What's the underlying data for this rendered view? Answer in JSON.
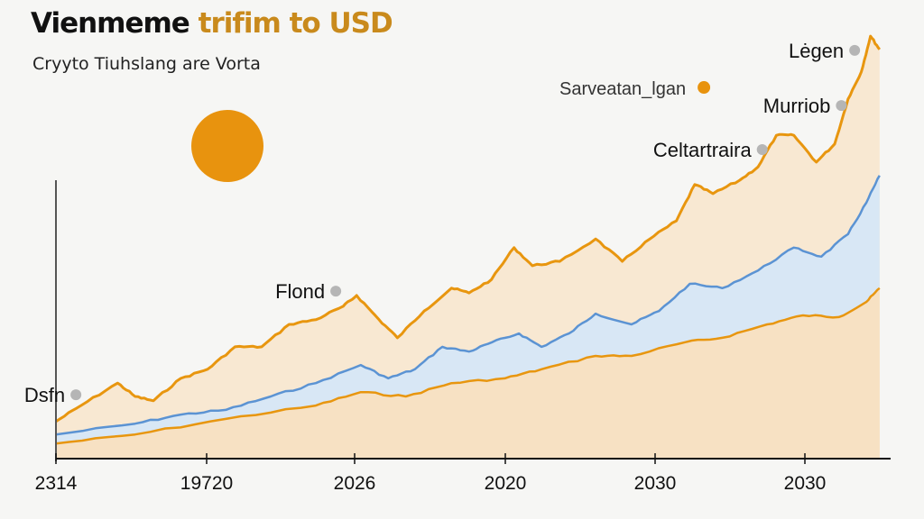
{
  "chart_data": {
    "type": "area",
    "title": "Vienmeme trifim to USD",
    "title_parts": [
      "Vienmeme",
      "trifim to USD"
    ],
    "subtitle": "Cryyto Tiuhslang are Vorta",
    "xlabel": "",
    "ylabel": "",
    "x_tick_labels": [
      "2314",
      "19720",
      "2026",
      "2020",
      "2030",
      "2030"
    ],
    "xlim": [
      0,
      100
    ],
    "ylim": [
      0,
      100
    ],
    "grid": false,
    "colors": {
      "orange": "#e8960f",
      "blue": "#5b93d3",
      "orange_fill": "#f8e8d2",
      "blue_fill": "#d8e7f5",
      "lower_fill": "#f7e1c3",
      "accent_circle": "#e8930e",
      "title_accent": "#c98a1c"
    },
    "series": [
      {
        "color": "orange",
        "points": [
          [
            0,
            8.6
          ],
          [
            3,
            12.3
          ],
          [
            7.4,
            17.5
          ],
          [
            9.5,
            14.4
          ],
          [
            11.7,
            13.4
          ],
          [
            15,
            18.6
          ],
          [
            18.2,
            20.7
          ],
          [
            21.5,
            25.9
          ],
          [
            24.7,
            25.9
          ],
          [
            28,
            31.1
          ],
          [
            31.2,
            32.2
          ],
          [
            34.5,
            35.3
          ],
          [
            36.1,
            37.8
          ],
          [
            38.8,
            32.2
          ],
          [
            41,
            28
          ],
          [
            44.2,
            34.2
          ],
          [
            47.5,
            39.5
          ],
          [
            49.6,
            38.4
          ],
          [
            52.3,
            41.5
          ],
          [
            55,
            48.9
          ],
          [
            57.2,
            44.7
          ],
          [
            60.5,
            45.7
          ],
          [
            64.8,
            50.9
          ],
          [
            68,
            45.7
          ],
          [
            71.3,
            50.9
          ],
          [
            74.5,
            55.1
          ],
          [
            76.7,
            63.5
          ],
          [
            78.9,
            61.4
          ],
          [
            82.1,
            64.5
          ],
          [
            84.3,
            67.6
          ],
          [
            86.5,
            74.9
          ],
          [
            88.6,
            74.9
          ],
          [
            91.3,
            68.7
          ],
          [
            93.5,
            72.9
          ],
          [
            95.1,
            83.3
          ],
          [
            96.7,
            89.6
          ],
          [
            97.8,
            97.9
          ],
          [
            98.9,
            94.8
          ]
        ]
      },
      {
        "color": "blue",
        "points": [
          [
            0,
            5.6
          ],
          [
            9.5,
            8.1
          ],
          [
            15,
            10.2
          ],
          [
            20.4,
            11.3
          ],
          [
            25.8,
            14.4
          ],
          [
            31.2,
            17.5
          ],
          [
            36.6,
            21.7
          ],
          [
            39.9,
            18.6
          ],
          [
            43.1,
            20.7
          ],
          [
            46.4,
            25.9
          ],
          [
            49.6,
            24.8
          ],
          [
            52.3,
            26.9
          ],
          [
            55.6,
            29
          ],
          [
            58.3,
            25.9
          ],
          [
            61.6,
            29
          ],
          [
            64.8,
            33.6
          ],
          [
            69.1,
            31.1
          ],
          [
            72.4,
            34.2
          ],
          [
            76.1,
            40.5
          ],
          [
            80,
            39.5
          ],
          [
            84.3,
            43.6
          ],
          [
            88.6,
            48.9
          ],
          [
            91.9,
            46.8
          ],
          [
            95.1,
            52
          ],
          [
            97.3,
            59.3
          ],
          [
            98.9,
            65.6
          ]
        ]
      },
      {
        "color": "orange",
        "points": [
          [
            0,
            3.5
          ],
          [
            9.5,
            5.6
          ],
          [
            20.4,
            9.2
          ],
          [
            31.2,
            12.3
          ],
          [
            36.6,
            15.4
          ],
          [
            42,
            14.4
          ],
          [
            47.5,
            17.5
          ],
          [
            53.9,
            18.6
          ],
          [
            58.3,
            20.7
          ],
          [
            64.8,
            23.8
          ],
          [
            69.1,
            23.8
          ],
          [
            75.6,
            27
          ],
          [
            80,
            28
          ],
          [
            85.4,
            31.1
          ],
          [
            89.7,
            33.2
          ],
          [
            94,
            32.8
          ],
          [
            97.3,
            36.3
          ],
          [
            98.9,
            39.5
          ]
        ]
      }
    ],
    "annotations": [
      {
        "text": "Dsfn",
        "x": 2.4,
        "y": 14.8,
        "marker": "gray"
      },
      {
        "text": "Flond",
        "x": 33.6,
        "y": 38.8,
        "marker": "gray"
      },
      {
        "text": "Celtartraira",
        "x": 84.8,
        "y": 71.6,
        "marker": "gray"
      },
      {
        "text": "Murriob",
        "x": 94.3,
        "y": 81.8,
        "marker": "gray"
      },
      {
        "text": "Lėgen",
        "x": 95.9,
        "y": 94.6,
        "marker": "gray"
      },
      {
        "text": "Sarveatan_lgan",
        "x": 77.8,
        "y": 86,
        "marker": "orange"
      }
    ]
  }
}
